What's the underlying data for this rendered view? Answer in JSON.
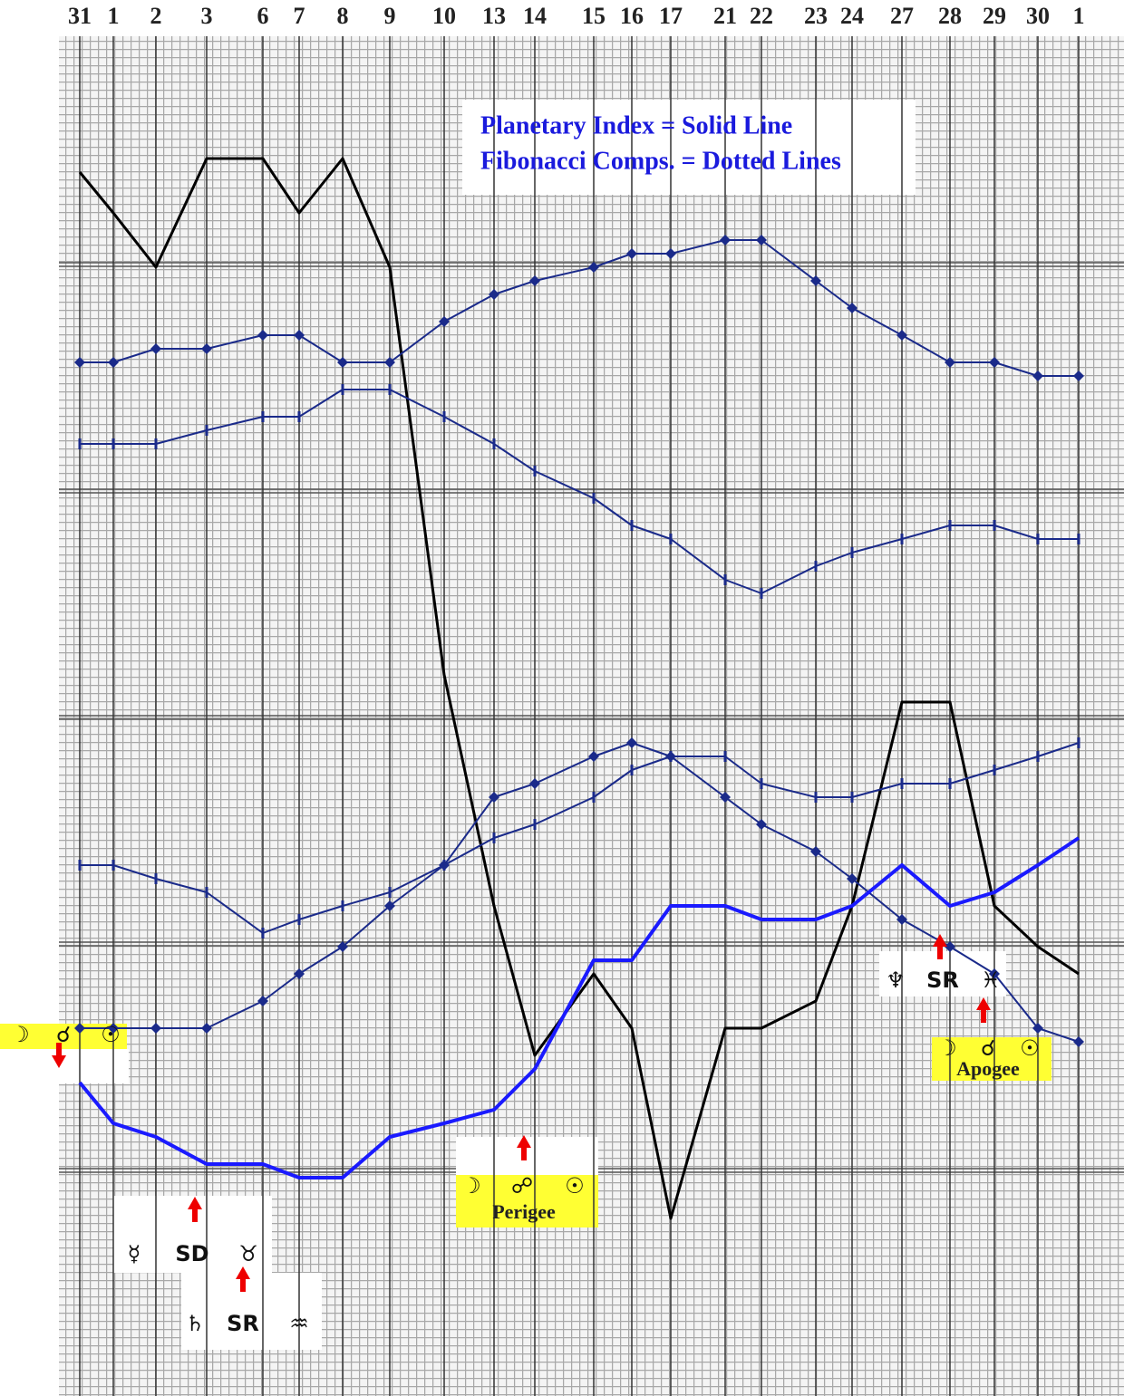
{
  "chart_data": {
    "type": "line",
    "categories": [
      "31",
      "1",
      "2",
      "3",
      "6",
      "7",
      "8",
      "9",
      "10",
      "13",
      "14",
      "15",
      "16",
      "17",
      "21",
      "22",
      "23",
      "24",
      "27",
      "28",
      "29",
      "30",
      "1"
    ],
    "ylim": [
      0,
      100
    ],
    "legend_text": [
      "Planetary Index = Solid Line",
      "Fibonacci Comps. = Dotted Lines"
    ],
    "series": [
      {
        "color": "#000000",
        "style": "price",
        "values": [
          90,
          87,
          83,
          91,
          91,
          87,
          91,
          83,
          53,
          36,
          25,
          31,
          27,
          13,
          27,
          27,
          29,
          36,
          51,
          51,
          36,
          33,
          31
        ]
      },
      {
        "color": "#1a2a8a",
        "style": "diamond",
        "values": [
          76,
          76,
          77,
          77,
          78,
          78,
          76,
          76,
          79,
          81,
          82,
          83,
          84,
          84,
          85,
          85,
          82,
          80,
          78,
          76,
          76,
          75,
          75
        ]
      },
      {
        "color": "#1a2a8a",
        "style": "tick",
        "values": [
          70,
          70,
          70,
          71,
          72,
          72,
          74,
          74,
          72,
          70,
          68,
          66,
          64,
          63,
          60,
          59,
          61,
          62,
          63,
          64,
          64,
          63,
          63
        ]
      },
      {
        "color": "#1a2a8a",
        "style": "diamond",
        "values": [
          27,
          27,
          27,
          27,
          29,
          31,
          33,
          36,
          39,
          44,
          45,
          47,
          48,
          47,
          44,
          42,
          40,
          38,
          35,
          33,
          31,
          27,
          26
        ]
      },
      {
        "color": "#1a2a8a",
        "style": "tick",
        "values": [
          39,
          39,
          38,
          37,
          34,
          35,
          36,
          37,
          39,
          41,
          42,
          44,
          46,
          47,
          47,
          45,
          44,
          44,
          45,
          45,
          46,
          47,
          48
        ]
      },
      {
        "color": "#1a1aff",
        "style": "solid",
        "values": [
          23,
          20,
          19,
          17,
          17,
          16,
          16,
          19,
          20,
          21,
          24,
          32,
          32,
          36,
          36,
          35,
          35,
          36,
          39,
          36,
          37,
          39,
          41
        ]
      }
    ],
    "annotations": [
      "☽",
      "☌",
      "☉",
      "☽",
      "☍",
      "☉",
      "Perigee",
      "☽",
      "☌",
      "☉",
      "Apogee",
      "☿",
      "SD",
      "♉",
      "♄",
      "SR",
      "♒",
      "♆",
      "SR",
      "♓"
    ]
  }
}
